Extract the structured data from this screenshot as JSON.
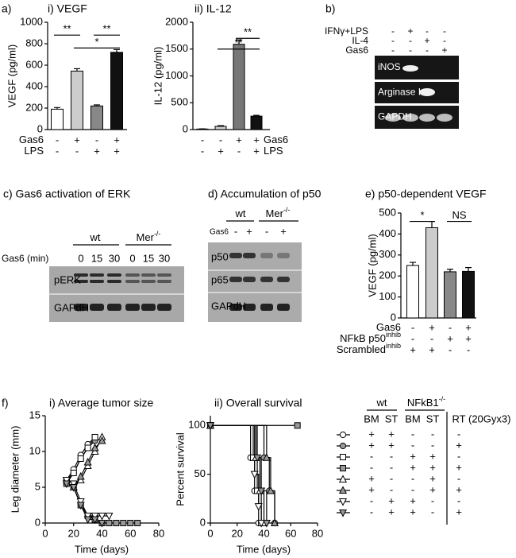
{
  "chart_data": [
    {
      "type": "bar",
      "panel_label": "a)",
      "title": "i) VEGF",
      "ylabel": "VEGF (pg/ml)",
      "values": [
        190,
        545,
        220,
        720
      ],
      "errors": [
        15,
        22,
        10,
        25
      ],
      "colors": [
        "#ffffff",
        "#cccccc",
        "#888888",
        "#111111"
      ],
      "ylim": [
        0,
        1000
      ],
      "yticks": [
        0,
        200,
        400,
        600,
        800,
        1000
      ],
      "conditions": [
        {
          "name": "Gas6",
          "signs": [
            "-",
            "+",
            "-",
            "+"
          ]
        },
        {
          "name": "LPS",
          "signs": [
            "-",
            "-",
            "+",
            "+"
          ]
        }
      ],
      "significance": [
        "**",
        "**",
        "*"
      ]
    },
    {
      "type": "bar",
      "title": "ii) IL-12",
      "ylabel": "IL-12 (pg/ml)",
      "values": [
        10,
        60,
        1590,
        250
      ],
      "errors": [
        4,
        12,
        80,
        15
      ],
      "colors": [
        "#ffffff",
        "#cccccc",
        "#777777",
        "#111111"
      ],
      "ylim": [
        0,
        2000
      ],
      "yticks": [
        0,
        500,
        1000,
        1500,
        2000
      ],
      "conditions": [
        {
          "name": "Gas6",
          "signs": [
            "-",
            "-",
            "+",
            "+"
          ]
        },
        {
          "name": "LPS",
          "signs": [
            "-",
            "+",
            "-",
            "+"
          ]
        }
      ],
      "significance": [
        "**",
        "**"
      ]
    },
    {
      "type": "bar",
      "title": "e) p50-dependent VEGF",
      "ylabel": "VEGF (pg/ml)",
      "values": [
        250,
        430,
        220,
        222
      ],
      "errors": [
        15,
        30,
        12,
        18
      ],
      "colors": [
        "#ffffff",
        "#cccccc",
        "#888888",
        "#111111"
      ],
      "ylim": [
        0,
        500
      ],
      "yticks": [
        0,
        100,
        200,
        300,
        400,
        500
      ],
      "conditions": [
        {
          "name": "Gas6",
          "signs": [
            "-",
            "+",
            "-",
            "+"
          ]
        },
        {
          "name": "NFkB p50",
          "sup": "inhib",
          "signs": [
            "-",
            "-",
            "+",
            "+"
          ]
        },
        {
          "name": "Scrambled",
          "sup": "inhib",
          "signs": [
            "+",
            "+",
            "-",
            "-"
          ]
        }
      ],
      "significance": [
        "*",
        "NS"
      ]
    },
    {
      "type": "line",
      "panel_label": "f)",
      "title": "i) Average tumor size",
      "xlabel": "Time (days)",
      "ylabel": "Leg diameter (mm)",
      "xlim": [
        0,
        80
      ],
      "xticks": [
        0,
        20,
        40,
        60,
        80
      ],
      "ylim": [
        0,
        15
      ],
      "yticks": [
        0,
        5,
        10,
        15
      ],
      "series": [
        {
          "marker": "circle",
          "color": "#ffffff",
          "x": [
            15,
            20,
            25,
            30,
            35
          ],
          "values": [
            6,
            7.5,
            9.5,
            11,
            12
          ]
        },
        {
          "marker": "circle",
          "color": "#999999",
          "x": [
            15,
            20,
            25,
            30,
            35
          ],
          "values": [
            5.5,
            7,
            9,
            10.5,
            11.5
          ]
        },
        {
          "marker": "square",
          "color": "#ffffff",
          "x": [
            15,
            20,
            25,
            30,
            35
          ],
          "values": [
            6,
            7,
            9,
            10.5,
            12
          ]
        },
        {
          "marker": "square",
          "color": "#999999",
          "x": [
            15,
            20,
            25,
            30,
            35,
            40,
            45,
            50,
            55,
            60,
            65
          ],
          "values": [
            5.5,
            5,
            2.5,
            1,
            0.5,
            0,
            0,
            0,
            0,
            0,
            0
          ]
        },
        {
          "marker": "triangle",
          "color": "#ffffff",
          "x": [
            20,
            25,
            30,
            35,
            40
          ],
          "values": [
            5,
            6,
            8,
            10,
            12
          ]
        },
        {
          "marker": "triangle",
          "color": "#999999",
          "x": [
            20,
            25,
            30,
            35,
            40
          ],
          "values": [
            5,
            6.5,
            8.5,
            10.5,
            11.5
          ]
        },
        {
          "marker": "triangle-down",
          "color": "#ffffff",
          "x": [
            15,
            20,
            25,
            30,
            35,
            40,
            45
          ],
          "values": [
            6,
            5.5,
            3,
            1,
            1,
            1,
            1
          ]
        },
        {
          "marker": "triangle-down",
          "color": "#999999",
          "x": [
            15,
            20,
            25,
            30,
            35,
            40
          ],
          "values": [
            5.5,
            5,
            2.5,
            0.5,
            0.5,
            0
          ]
        }
      ]
    },
    {
      "type": "line",
      "step": true,
      "title": "ii) Overall survival",
      "xlabel": "Time (days)",
      "ylabel": "Percent survival",
      "xlim": [
        0,
        80
      ],
      "xticks": [
        0,
        20,
        40,
        60,
        80
      ],
      "ylim": [
        0,
        110
      ],
      "yticks": [
        0,
        50,
        100
      ],
      "series": [
        {
          "marker": "circle",
          "color": "#ffffff",
          "x": [
            0,
            30,
            33,
            36
          ],
          "values": [
            100,
            67,
            33,
            0
          ]
        },
        {
          "marker": "circle",
          "color": "#999999",
          "x": [
            0,
            40,
            44,
            48
          ],
          "values": [
            100,
            67,
            33,
            0
          ]
        },
        {
          "marker": "square",
          "color": "#ffffff",
          "x": [
            0,
            32,
            35,
            38
          ],
          "values": [
            100,
            67,
            33,
            0
          ]
        },
        {
          "marker": "square",
          "color": "#999999",
          "x": [
            0,
            65
          ],
          "values": [
            100,
            100
          ]
        },
        {
          "marker": "triangle",
          "color": "#ffffff",
          "x": [
            0,
            34,
            37,
            40
          ],
          "values": [
            100,
            67,
            33,
            0
          ]
        },
        {
          "marker": "triangle",
          "color": "#999999",
          "x": [
            0,
            42,
            45,
            48
          ],
          "values": [
            100,
            67,
            33,
            0
          ]
        },
        {
          "marker": "triangle-down",
          "color": "#ffffff",
          "x": [
            0,
            33,
            36,
            38
          ],
          "values": [
            100,
            50,
            17,
            0
          ]
        },
        {
          "marker": "triangle-down",
          "color": "#999999",
          "x": [
            0,
            35,
            38,
            42
          ],
          "values": [
            100,
            67,
            33,
            0
          ]
        }
      ]
    }
  ],
  "legend_table": {
    "groups": [
      {
        "name": "wt"
      },
      {
        "name": "NFkB1",
        "sup": "-/-"
      }
    ],
    "columns": [
      "BM",
      "ST",
      "BM",
      "ST",
      "RT"
    ],
    "note": "(20Gyx3)",
    "rows": [
      [
        "+",
        "+",
        "-",
        "-",
        "-"
      ],
      [
        "+",
        "+",
        "-",
        "-",
        "+"
      ],
      [
        "-",
        "-",
        "+",
        "+",
        "-"
      ],
      [
        "-",
        "-",
        "+",
        "+",
        "+"
      ],
      [
        "+",
        "-",
        "-",
        "+",
        "-"
      ],
      [
        "+",
        "-",
        "-",
        "+",
        "+"
      ],
      [
        "-",
        "+",
        "+",
        "-",
        "-"
      ],
      [
        "-",
        "+",
        "+",
        "-",
        "+"
      ]
    ]
  },
  "blots": [
    {
      "panel_label": "b)",
      "conditions": [
        {
          "name": "IFNγ+LPS",
          "signs": [
            "-",
            "+",
            "-",
            "-"
          ]
        },
        {
          "name": "IL-4",
          "signs": [
            "-",
            "-",
            "+",
            "-"
          ]
        },
        {
          "name": "Gas6",
          "signs": [
            "-",
            "-",
            "-",
            "+"
          ]
        }
      ],
      "rows": [
        "iNOS",
        "Arginase I",
        "GAPDH"
      ]
    },
    {
      "title": "c) Gas6 activation of ERK",
      "groups": [
        {
          "name": "wt"
        },
        {
          "name": "Mer",
          "sup": "-/-"
        }
      ],
      "condition": "Gas6 (min)",
      "lanes": [
        "0",
        "15",
        "30",
        "0",
        "15",
        "30"
      ],
      "rows": [
        "pERK",
        "GAPdH"
      ]
    },
    {
      "title": "d) Accumulation of p50",
      "groups": [
        {
          "name": "wt"
        },
        {
          "name": "Mer",
          "sup": "-/-"
        }
      ],
      "condition": "Gas6",
      "lanes": [
        "-",
        "+",
        "-",
        "+"
      ],
      "rows": [
        "p50",
        "p65",
        "GAPdH"
      ]
    }
  ]
}
